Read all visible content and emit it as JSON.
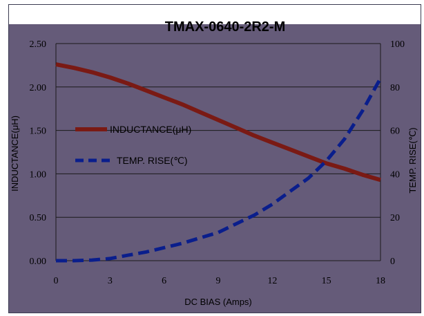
{
  "chart_data": {
    "type": "line",
    "title": "TMAX-0640-2R2-M",
    "xlabel": "DC BIAS (Amps)",
    "ylabel": "INDUCTANCE(μH)",
    "y2label": "TEMP. RISE(℃)",
    "xlim": [
      0,
      18
    ],
    "ylim": [
      0,
      2.5
    ],
    "y2lim": [
      0,
      100
    ],
    "x_ticks": [
      "0",
      "3",
      "6",
      "9",
      "12",
      "15",
      "18"
    ],
    "y_ticks": [
      "0.00",
      "0.50",
      "1.00",
      "1.50",
      "2.00",
      "2.50"
    ],
    "y2_ticks": [
      "0",
      "20",
      "40",
      "60",
      "80",
      "100"
    ],
    "grid": "horizontal",
    "legend": "left",
    "plot_background": "#655b79",
    "series": [
      {
        "name": "INDUCTANCE(μH)",
        "axis": "left",
        "style": "solid",
        "color": "#7a1a14",
        "x": [
          0,
          1,
          2,
          3,
          4,
          5,
          6,
          7,
          8,
          9,
          10,
          11,
          12,
          13,
          14,
          15,
          16,
          17,
          18
        ],
        "values": [
          2.26,
          2.22,
          2.17,
          2.11,
          2.04,
          1.96,
          1.88,
          1.8,
          1.71,
          1.62,
          1.53,
          1.44,
          1.36,
          1.28,
          1.2,
          1.12,
          1.06,
          0.99,
          0.93
        ]
      },
      {
        "name": "TEMP. RISE(℃)",
        "axis": "right",
        "style": "dashed",
        "color": "#0a1e8c",
        "x": [
          0,
          1,
          2,
          3,
          4,
          5,
          6,
          7,
          8,
          9,
          10,
          11,
          12,
          13,
          14,
          15,
          16,
          17,
          18
        ],
        "values": [
          0,
          0,
          0.3,
          1,
          2.5,
          4,
          6,
          8,
          10.5,
          13,
          17,
          21,
          26,
          32,
          38,
          46,
          56,
          69,
          84
        ]
      }
    ]
  }
}
